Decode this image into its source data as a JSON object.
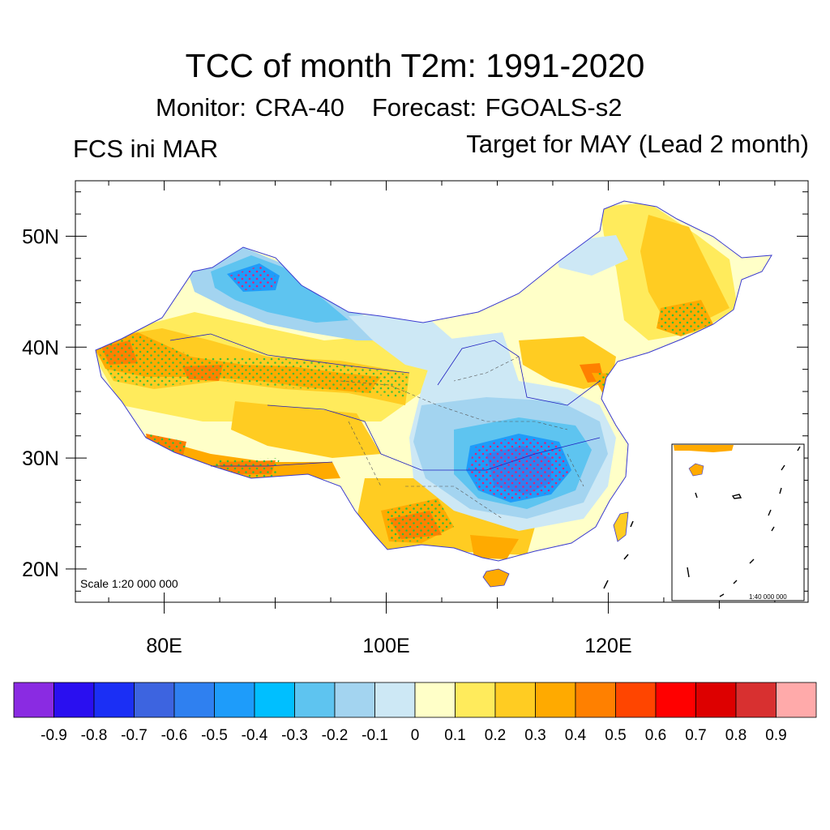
{
  "title": "TCC of month T2m: 1991-2020",
  "subtitle": {
    "monitor": "Monitor: CRA-40",
    "forecast": "Forecast: FGOALS-s2"
  },
  "left_label": "FCS ini MAR",
  "right_label": "Target for MAY (Lead 2 month)",
  "map": {
    "scale_main": "Scale 1:20 000 000",
    "scale_inset": "1:40 000 000",
    "lat_labels": [
      "50N",
      "40N",
      "30N",
      "20N"
    ],
    "lon_labels": [
      "80E",
      "100E",
      "120E"
    ],
    "lat_values": [
      50,
      40,
      30,
      20
    ],
    "lon_values": [
      80,
      100,
      120
    ],
    "lon_range": [
      72,
      138
    ],
    "lat_range": [
      17,
      55
    ]
  },
  "colorbar": {
    "labels": [
      "-0.9",
      "-0.8",
      "-0.7",
      "-0.6",
      "-0.5",
      "-0.4",
      "-0.3",
      "-0.2",
      "-0.1",
      "0",
      "0.1",
      "0.2",
      "0.3",
      "0.4",
      "0.5",
      "0.6",
      "0.7",
      "0.8",
      "0.9"
    ],
    "colors": [
      "#8a2be2",
      "#2a0ff0",
      "#1b2ff5",
      "#3d64e0",
      "#2f80f0",
      "#1e9cfa",
      "#00bfff",
      "#5ec4f0",
      "#a3d4f0",
      "#cde8f5",
      "#ffffc8",
      "#ffeb5c",
      "#ffcc22",
      "#ffaa00",
      "#ff8000",
      "#ff4500",
      "#ff0000",
      "#dd0000",
      "#d83030",
      "#ffaaaa"
    ]
  }
}
